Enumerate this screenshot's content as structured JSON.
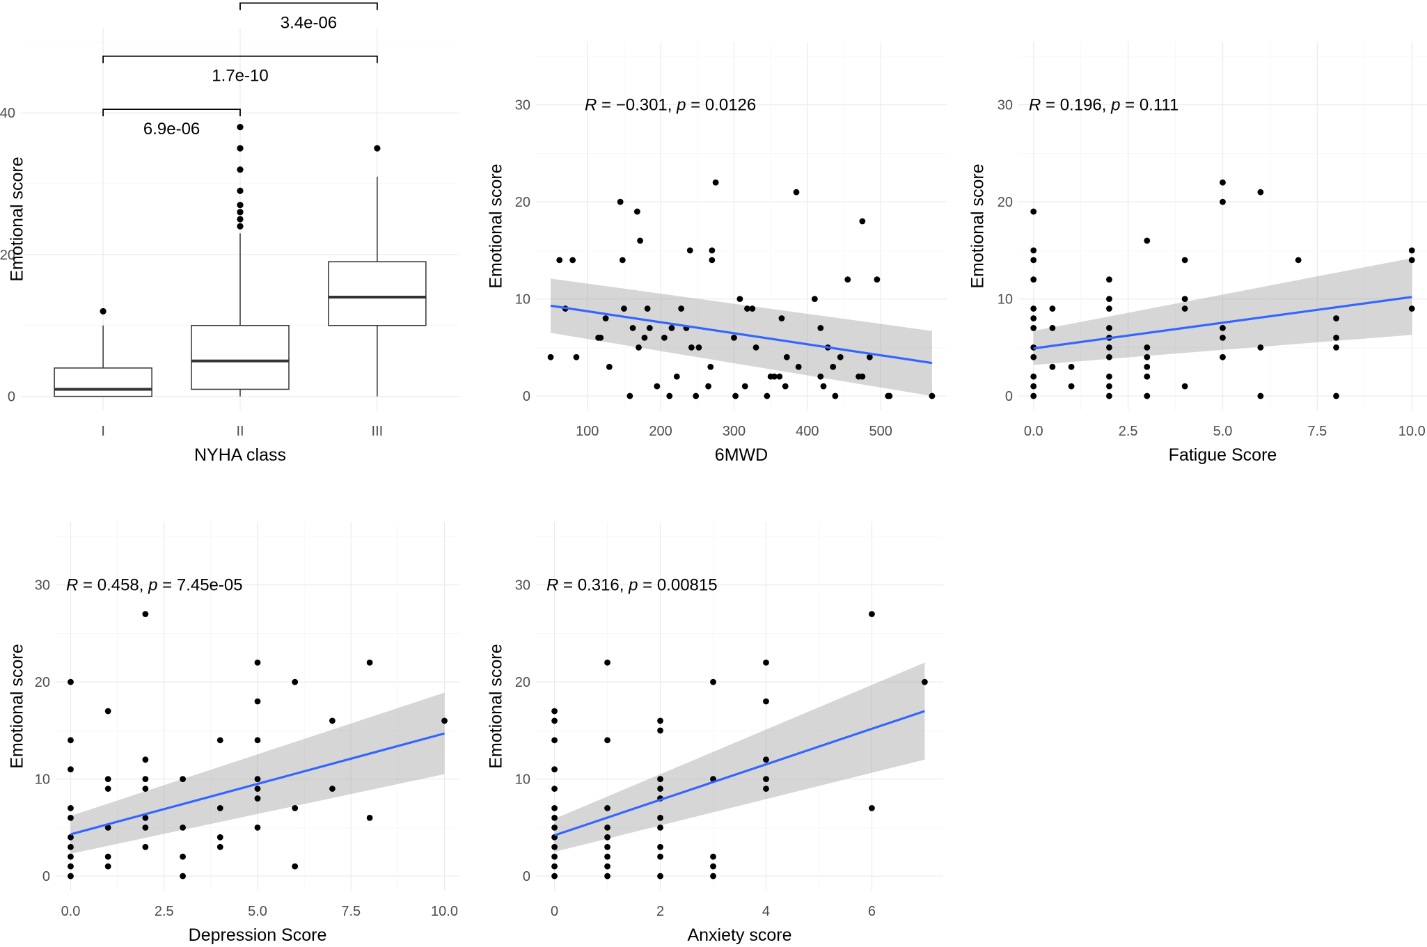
{
  "chart_data": [
    {
      "type": "box",
      "id": "nyha",
      "xlabel": "NYHA class",
      "ylabel": "Emotional score",
      "categories": [
        "I",
        "II",
        "III"
      ],
      "ylim": [
        -2,
        52
      ],
      "yticks": [
        0,
        20,
        40
      ],
      "boxes": [
        {
          "category": "I",
          "lower_whisker": 0,
          "q1": 0,
          "median": 1,
          "q3": 4,
          "upper_whisker": 10,
          "outliers": [
            12
          ]
        },
        {
          "category": "II",
          "lower_whisker": 0,
          "q1": 1,
          "median": 5,
          "q3": 10,
          "upper_whisker": 23,
          "outliers": [
            24,
            25,
            26,
            27,
            29,
            32,
            35,
            38
          ]
        },
        {
          "category": "III",
          "lower_whisker": 0,
          "q1": 10,
          "median": 14,
          "q3": 19,
          "upper_whisker": 31,
          "outliers": [
            35
          ]
        }
      ],
      "comparisons": [
        {
          "from": "II",
          "to": "III",
          "label": "3.4e-06",
          "y": 55.5
        },
        {
          "from": "I",
          "to": "III",
          "label": "1.7e-10",
          "y": 48
        },
        {
          "from": "I",
          "to": "II",
          "label": "6.9e-06",
          "y": 40.5
        }
      ]
    },
    {
      "type": "scatter",
      "id": "sixmwd",
      "xlabel": "6MWD",
      "ylabel": "Emotional score",
      "annotation": {
        "r": "0.301",
        "r_sign": "−",
        "p": "0.0126"
      },
      "xlim": [
        30,
        590
      ],
      "ylim": [
        -1.5,
        36.5
      ],
      "xticks": [
        100,
        200,
        300,
        400,
        500
      ],
      "yticks": [
        0,
        10,
        20,
        30
      ],
      "fit": {
        "x": [
          50,
          570
        ],
        "y": [
          9.3,
          3.4
        ],
        "lo": [
          6.5,
          0.0
        ],
        "hi": [
          12.1,
          6.7
        ]
      },
      "points": [
        [
          50,
          4
        ],
        [
          62,
          14
        ],
        [
          70,
          9
        ],
        [
          80,
          14
        ],
        [
          85,
          4
        ],
        [
          115,
          6
        ],
        [
          118,
          6
        ],
        [
          125,
          8
        ],
        [
          130,
          3
        ],
        [
          145,
          20
        ],
        [
          148,
          14
        ],
        [
          150,
          9
        ],
        [
          158,
          0
        ],
        [
          162,
          7
        ],
        [
          168,
          19
        ],
        [
          170,
          5
        ],
        [
          172,
          16
        ],
        [
          178,
          6
        ],
        [
          182,
          9
        ],
        [
          185,
          7
        ],
        [
          195,
          1
        ],
        [
          205,
          6
        ],
        [
          212,
          0
        ],
        [
          215,
          7
        ],
        [
          222,
          2
        ],
        [
          228,
          9
        ],
        [
          235,
          7
        ],
        [
          240,
          15
        ],
        [
          242,
          5
        ],
        [
          248,
          0
        ],
        [
          252,
          5
        ],
        [
          265,
          1
        ],
        [
          268,
          3
        ],
        [
          270,
          15
        ],
        [
          270,
          14
        ],
        [
          275,
          22
        ],
        [
          300,
          6
        ],
        [
          302,
          0
        ],
        [
          308,
          10
        ],
        [
          315,
          1
        ],
        [
          318,
          9
        ],
        [
          325,
          9
        ],
        [
          330,
          5
        ],
        [
          345,
          0
        ],
        [
          350,
          2
        ],
        [
          355,
          2
        ],
        [
          362,
          2
        ],
        [
          365,
          8
        ],
        [
          370,
          1
        ],
        [
          372,
          4
        ],
        [
          385,
          21
        ],
        [
          388,
          3
        ],
        [
          410,
          10
        ],
        [
          418,
          2
        ],
        [
          418,
          7
        ],
        [
          422,
          1
        ],
        [
          428,
          5
        ],
        [
          435,
          3
        ],
        [
          438,
          0
        ],
        [
          445,
          4
        ],
        [
          455,
          12
        ],
        [
          470,
          2
        ],
        [
          475,
          18
        ],
        [
          475,
          2
        ],
        [
          485,
          4
        ],
        [
          495,
          12
        ],
        [
          510,
          0
        ],
        [
          512,
          0
        ],
        [
          570,
          0
        ]
      ]
    },
    {
      "type": "scatter",
      "id": "fatigue",
      "xlabel": "Fatigue Score",
      "ylabel": "Emotional score",
      "annotation": {
        "r": "0.196",
        "r_sign": "",
        "p": "0.111"
      },
      "xlim": [
        -0.4,
        10.4
      ],
      "ylim": [
        -1.5,
        36.5
      ],
      "xticks": [
        "0.0",
        "2.5",
        "5.0",
        "7.5",
        "10.0"
      ],
      "xtick_values": [
        0,
        2.5,
        5,
        7.5,
        10
      ],
      "yticks": [
        0,
        10,
        20,
        30
      ],
      "fit": {
        "x": [
          0,
          10
        ],
        "y": [
          4.9,
          10.2
        ],
        "lo": [
          3.2,
          6.3
        ],
        "hi": [
          6.7,
          14.2
        ]
      },
      "points": [
        [
          0,
          19
        ],
        [
          0,
          15
        ],
        [
          0,
          14
        ],
        [
          0,
          12
        ],
        [
          0,
          9
        ],
        [
          0,
          8
        ],
        [
          0,
          7
        ],
        [
          0,
          5
        ],
        [
          0,
          4
        ],
        [
          0,
          2
        ],
        [
          0,
          1
        ],
        [
          0,
          0
        ],
        [
          0.5,
          9
        ],
        [
          0.5,
          7
        ],
        [
          0.5,
          3
        ],
        [
          1,
          3
        ],
        [
          1,
          1
        ],
        [
          2,
          12
        ],
        [
          2,
          10
        ],
        [
          2,
          9
        ],
        [
          2,
          7
        ],
        [
          2,
          6
        ],
        [
          2,
          5
        ],
        [
          2,
          4
        ],
        [
          2,
          2
        ],
        [
          2,
          1
        ],
        [
          2,
          0
        ],
        [
          3,
          16
        ],
        [
          3,
          5
        ],
        [
          3,
          4
        ],
        [
          3,
          3
        ],
        [
          3,
          2
        ],
        [
          3,
          0
        ],
        [
          4,
          14
        ],
        [
          4,
          10
        ],
        [
          4,
          9
        ],
        [
          4,
          1
        ],
        [
          5,
          22
        ],
        [
          5,
          20
        ],
        [
          5,
          7
        ],
        [
          5,
          6
        ],
        [
          5,
          4
        ],
        [
          6,
          21
        ],
        [
          6,
          5
        ],
        [
          6,
          0
        ],
        [
          7,
          14
        ],
        [
          8,
          8
        ],
        [
          8,
          6
        ],
        [
          8,
          5
        ],
        [
          8,
          0
        ],
        [
          10,
          15
        ],
        [
          10,
          14
        ],
        [
          10,
          9
        ]
      ]
    },
    {
      "type": "scatter",
      "id": "depression",
      "xlabel": "Depression Score",
      "ylabel": "Emotional score",
      "annotation": {
        "r": "0.458",
        "r_sign": "",
        "p": "7.45e-05"
      },
      "xlim": [
        -0.4,
        10.4
      ],
      "ylim": [
        -1.5,
        36.5
      ],
      "xticks": [
        "0.0",
        "2.5",
        "5.0",
        "7.5",
        "10.0"
      ],
      "xtick_values": [
        0,
        2.5,
        5,
        7.5,
        10
      ],
      "yticks": [
        0,
        10,
        20,
        30
      ],
      "fit": {
        "x": [
          0,
          10
        ],
        "y": [
          4.3,
          14.7
        ],
        "lo": [
          2.3,
          10.5
        ],
        "hi": [
          6.2,
          18.9
        ]
      },
      "points": [
        [
          0,
          20
        ],
        [
          0,
          14
        ],
        [
          0,
          11
        ],
        [
          0,
          7
        ],
        [
          0,
          6
        ],
        [
          0,
          4
        ],
        [
          0,
          3
        ],
        [
          0,
          2
        ],
        [
          0,
          1
        ],
        [
          0,
          0
        ],
        [
          1,
          17
        ],
        [
          1,
          10
        ],
        [
          1,
          9
        ],
        [
          1,
          5
        ],
        [
          1,
          2
        ],
        [
          1,
          1
        ],
        [
          2,
          27
        ],
        [
          2,
          12
        ],
        [
          2,
          10
        ],
        [
          2,
          9
        ],
        [
          2,
          6
        ],
        [
          2,
          5
        ],
        [
          2,
          3
        ],
        [
          3,
          10
        ],
        [
          3,
          5
        ],
        [
          3,
          2
        ],
        [
          3,
          0
        ],
        [
          4,
          14
        ],
        [
          4,
          7
        ],
        [
          4,
          4
        ],
        [
          4,
          3
        ],
        [
          5,
          22
        ],
        [
          5,
          18
        ],
        [
          5,
          14
        ],
        [
          5,
          10
        ],
        [
          5,
          9
        ],
        [
          5,
          8
        ],
        [
          5,
          5
        ],
        [
          6,
          20
        ],
        [
          6,
          7
        ],
        [
          6,
          1
        ],
        [
          7,
          16
        ],
        [
          7,
          9
        ],
        [
          8,
          22
        ],
        [
          8,
          6
        ],
        [
          10,
          16
        ]
      ]
    },
    {
      "type": "scatter",
      "id": "anxiety",
      "xlabel": "Anxiety score",
      "ylabel": "Emotional score",
      "annotation": {
        "r": "0.316",
        "r_sign": "",
        "p": "0.00815"
      },
      "xlim": [
        -0.35,
        7.35
      ],
      "ylim": [
        -1.5,
        36.5
      ],
      "xticks": [
        "0",
        "2",
        "4",
        "6"
      ],
      "xtick_values": [
        0,
        2,
        4,
        6
      ],
      "yticks": [
        0,
        10,
        20,
        30
      ],
      "fit": {
        "x": [
          0,
          7
        ],
        "y": [
          4.2,
          17.0
        ],
        "lo": [
          2.5,
          12.0
        ],
        "hi": [
          5.9,
          22.0
        ]
      },
      "points": [
        [
          0,
          17
        ],
        [
          0,
          16
        ],
        [
          0,
          14
        ],
        [
          0,
          11
        ],
        [
          0,
          9
        ],
        [
          0,
          7
        ],
        [
          0,
          6
        ],
        [
          0,
          5
        ],
        [
          0,
          4
        ],
        [
          0,
          3
        ],
        [
          0,
          2
        ],
        [
          0,
          1
        ],
        [
          0,
          0
        ],
        [
          1,
          22
        ],
        [
          1,
          14
        ],
        [
          1,
          7
        ],
        [
          1,
          5
        ],
        [
          1,
          4
        ],
        [
          1,
          3
        ],
        [
          1,
          2
        ],
        [
          1,
          1
        ],
        [
          1,
          0
        ],
        [
          2,
          16
        ],
        [
          2,
          15
        ],
        [
          2,
          10
        ],
        [
          2,
          9
        ],
        [
          2,
          8
        ],
        [
          2,
          6
        ],
        [
          2,
          5
        ],
        [
          2,
          3
        ],
        [
          2,
          2
        ],
        [
          2,
          0
        ],
        [
          3,
          20
        ],
        [
          3,
          10
        ],
        [
          3,
          2
        ],
        [
          3,
          1
        ],
        [
          3,
          0
        ],
        [
          4,
          22
        ],
        [
          4,
          18
        ],
        [
          4,
          12
        ],
        [
          4,
          10
        ],
        [
          4,
          9
        ],
        [
          6,
          27
        ],
        [
          6,
          7
        ],
        [
          7,
          20
        ]
      ]
    }
  ]
}
